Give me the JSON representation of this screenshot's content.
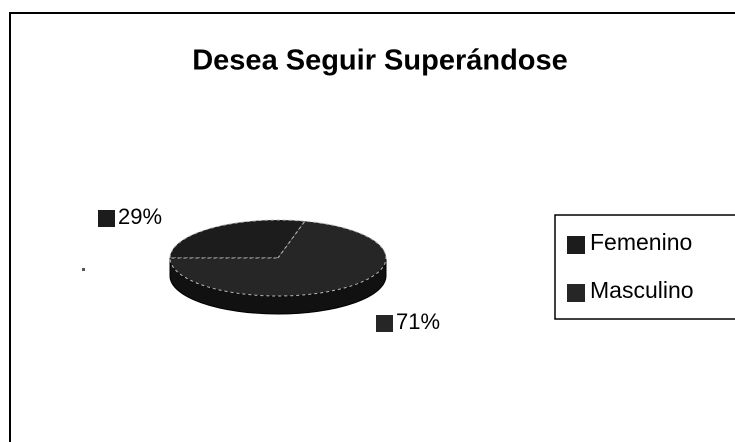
{
  "chart_data": {
    "type": "pie",
    "title": "Desea Seguir Superándose",
    "categories": [
      "Femenino",
      "Masculino"
    ],
    "values": [
      29,
      71
    ],
    "value_labels": [
      "29%",
      "71%"
    ],
    "colors": [
      "#1c1c1c",
      "#262626"
    ],
    "legend": "right"
  }
}
